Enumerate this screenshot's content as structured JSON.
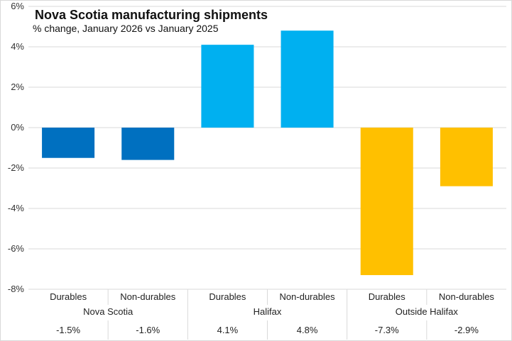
{
  "chart_data": {
    "type": "bar",
    "title": "Nova Scotia manufacturing shipments",
    "subtitle": "% change, January 2026 vs January 2025",
    "xlabel": "",
    "ylabel": "",
    "ylim": [
      -8,
      6
    ],
    "yticks": [
      6,
      4,
      2,
      0,
      -2,
      -4,
      -6,
      -8
    ],
    "ytick_labels": [
      "6%",
      "4%",
      "2%",
      "0%",
      "-2%",
      "-4%",
      "-6%",
      "-8%"
    ],
    "grid": true,
    "legend": "none",
    "groups": [
      {
        "name": "Nova Scotia",
        "color": "#0070C0",
        "categories": [
          "Durables",
          "Non-durables"
        ],
        "values": [
          -1.5,
          -1.6
        ],
        "value_labels": [
          "-1.5%",
          "-1.6%"
        ]
      },
      {
        "name": "Halifax",
        "color": "#00B0F0",
        "categories": [
          "Durables",
          "Non-durables"
        ],
        "values": [
          4.1,
          4.8
        ],
        "value_labels": [
          "4.1%",
          "4.8%"
        ]
      },
      {
        "name": "Outside Halifax",
        "color": "#FFC000",
        "categories": [
          "Durables",
          "Non-durables"
        ],
        "values": [
          -7.3,
          -2.9
        ],
        "value_labels": [
          "-7.3%",
          "-2.9%"
        ]
      }
    ]
  }
}
